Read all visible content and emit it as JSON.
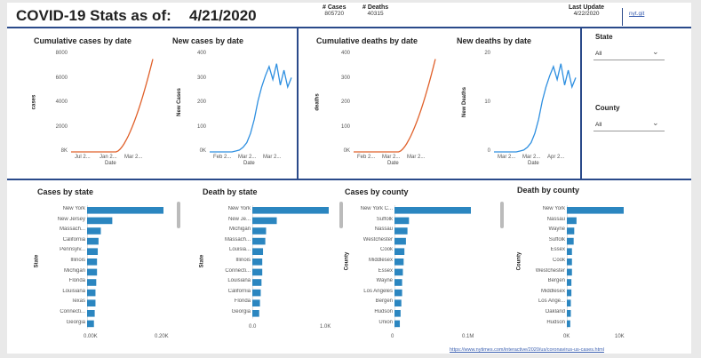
{
  "header": {
    "title": "COVID-19 Stats as of:",
    "date": "4/21/2020",
    "cases_label": "# Cases",
    "cases_value": "805720",
    "deaths_label": "# Deaths",
    "deaths_value": "40315",
    "last_update_label": "Last Update",
    "last_update_value": "4/22/2020",
    "link_text": "nyt.git"
  },
  "slicers": {
    "state_label": "State",
    "state_value": "All",
    "county_label": "County",
    "county_value": "All"
  },
  "footer_url": "https://www.nytimes.com/interactive/2020/us/coronavirus-us-cases.html",
  "colors": {
    "orange": "#e0602a",
    "blue": "#2e8fe0",
    "bar": "#2b86c0",
    "accent": "#2a4a8a"
  },
  "line_charts": [
    {
      "title": "Cumulative cases by date",
      "ylabel": "cases",
      "xlabel": "Date",
      "yticks": [
        "8K",
        "2000",
        "4000",
        "6000",
        "8000"
      ],
      "xticks": [
        "Jul 2...",
        "Jan 2...",
        "Mar 2..."
      ],
      "color": "orange",
      "shape": "exp"
    },
    {
      "title": "New cases by date",
      "ylabel": "New Cases",
      "xlabel": "Date",
      "yticks": [
        "0K",
        "100",
        "200",
        "300",
        "400"
      ],
      "xticks": [
        "Feb 2...",
        "Mar 2...",
        "Mar 2..."
      ],
      "color": "blue",
      "shape": "spiky"
    },
    {
      "title": "Cumulative deaths by date",
      "ylabel": "deaths",
      "xlabel": "Date",
      "yticks": [
        "0K",
        "100",
        "200",
        "300",
        "400"
      ],
      "xticks": [
        "Feb 2...",
        "Mar 2...",
        "Mar 2..."
      ],
      "color": "orange",
      "shape": "exp"
    },
    {
      "title": "New deaths by date",
      "ylabel": "New Deaths",
      "xlabel": "Date",
      "yticks": [
        "0",
        "10",
        "20"
      ],
      "xticks": [
        "Mar 2...",
        "Mar 2...",
        "Apr 2..."
      ],
      "color": "blue",
      "shape": "spiky"
    }
  ],
  "bar_charts": [
    {
      "title": "Cases by state",
      "ylabel": "State",
      "xticks": [
        "0.00K",
        "0.20K"
      ],
      "categories": [
        "New York",
        "New Jersey",
        "Massach...",
        "California",
        "Pennsylv...",
        "Illinois",
        "Michigan",
        "Florida",
        "Louisiana",
        "Texas",
        "Connecti...",
        "Georgia"
      ],
      "values": [
        1.0,
        0.33,
        0.18,
        0.15,
        0.14,
        0.13,
        0.13,
        0.12,
        0.11,
        0.11,
        0.1,
        0.09
      ]
    },
    {
      "title": "Death by state",
      "ylabel": "State",
      "xticks": [
        "0.0",
        "1.0K"
      ],
      "categories": [
        "New York",
        "New Je...",
        "Michigan",
        "Massach...",
        "Louisia...",
        "Illinois",
        "Connecti...",
        "Louisiana",
        "California",
        "Florida",
        "Georgia"
      ],
      "values": [
        1.0,
        0.32,
        0.18,
        0.17,
        0.14,
        0.13,
        0.13,
        0.12,
        0.11,
        0.1,
        0.09
      ]
    },
    {
      "title": "Cases by county",
      "ylabel": "County",
      "xticks": [
        "0",
        "0.1M"
      ],
      "categories": [
        "New York C...",
        "Suffolk",
        "Nassau",
        "Westchester",
        "Cook",
        "Middlesex",
        "Essex",
        "Wayne",
        "Los Angeles",
        "Bergen",
        "Hudson",
        "Union"
      ],
      "values": [
        1.0,
        0.19,
        0.17,
        0.15,
        0.13,
        0.12,
        0.11,
        0.1,
        0.1,
        0.09,
        0.08,
        0.07
      ]
    },
    {
      "title": "Death by county",
      "ylabel": "County",
      "xticks": [
        "0K",
        "10K"
      ],
      "categories": [
        "New York",
        "Nassau",
        "Wayne",
        "Suffolk",
        "Essex",
        "Cook",
        "Westchester",
        "Bergen",
        "Middlesex",
        "Los Ange...",
        "Oakland",
        "Hudson"
      ],
      "values": [
        1.0,
        0.17,
        0.13,
        0.12,
        0.09,
        0.09,
        0.09,
        0.08,
        0.08,
        0.07,
        0.07,
        0.06
      ]
    }
  ]
}
